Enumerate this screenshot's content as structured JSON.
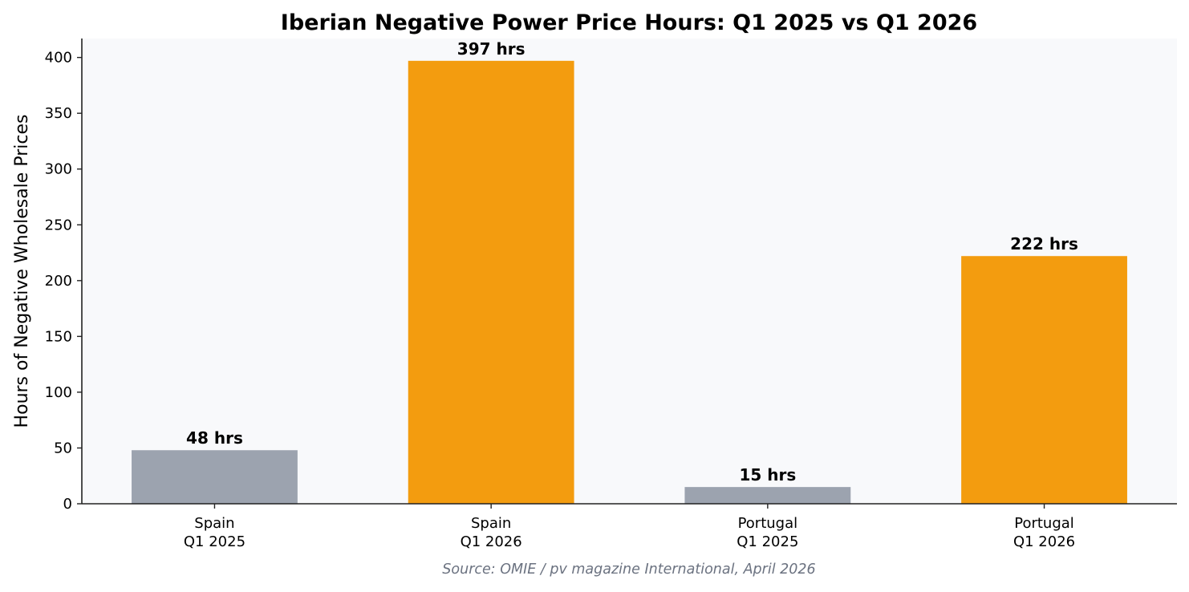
{
  "chart_data": {
    "type": "bar",
    "title": "Iberian Negative Power Price Hours: Q1 2025 vs Q1 2026",
    "xlabel": "",
    "ylabel": "Hours of Negative Wholesale Prices",
    "categories": [
      "Spain\nQ1 2025",
      "Spain\nQ1 2026",
      "Portugal\nQ1 2025",
      "Portugal\nQ1 2026"
    ],
    "values": [
      48,
      397,
      15,
      222
    ],
    "data_labels": [
      "48 hrs",
      "397 hrs",
      "15 hrs",
      "222 hrs"
    ],
    "bar_colors": [
      "#9ca3af",
      "#f39c0f",
      "#9ca3af",
      "#f39c0f"
    ],
    "ylim": [
      0,
      417
    ],
    "yticks": [
      0,
      50,
      100,
      150,
      200,
      250,
      300,
      350,
      400
    ],
    "grid": false,
    "legend": "none",
    "plot_background": "#f8f9fb",
    "source_note": "Source: OMIE / pv magazine International, April 2026"
  }
}
